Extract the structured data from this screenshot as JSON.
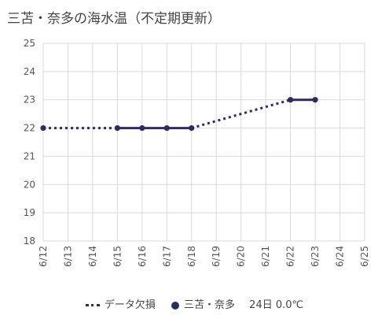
{
  "chart_data": {
    "type": "line",
    "title": "三苫・奈多の海水温（不定期更新）",
    "categories": [
      "6/12",
      "6/13",
      "6/14",
      "6/15",
      "6/16",
      "6/17",
      "6/18",
      "6/19",
      "6/20",
      "6/21",
      "6/22",
      "6/23",
      "6/24",
      "6/25"
    ],
    "yticks": [
      "18",
      "19",
      "20",
      "21",
      "22",
      "23",
      "24",
      "25"
    ],
    "ylim": [
      18,
      25
    ],
    "grid": true,
    "series": [
      {
        "name": "三苫・奈多",
        "color": "#2b2d62",
        "style": "solid",
        "points": [
          {
            "x": "6/12",
            "y": 22
          },
          {
            "x": "6/15",
            "y": 22
          },
          {
            "x": "6/16",
            "y": 22
          },
          {
            "x": "6/17",
            "y": 22
          },
          {
            "x": "6/18",
            "y": 22
          },
          {
            "x": "6/22",
            "y": 23
          },
          {
            "x": "6/23",
            "y": 23
          }
        ]
      },
      {
        "name": "データ欠損",
        "color": "#2b2d62",
        "style": "dotted",
        "segments": [
          [
            {
              "x": "6/12",
              "y": 22
            },
            {
              "x": "6/15",
              "y": 22
            }
          ],
          [
            {
              "x": "6/18",
              "y": 22
            },
            {
              "x": "6/22",
              "y": 23
            }
          ]
        ]
      }
    ],
    "legend": {
      "position": "bottom",
      "missing_label": "データ欠損",
      "series_label": "三苫・奈多",
      "status": "24日 0.0℃"
    }
  }
}
